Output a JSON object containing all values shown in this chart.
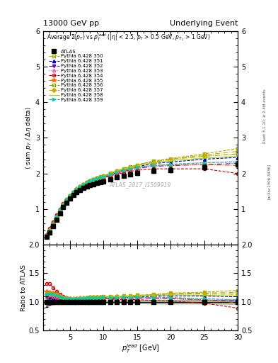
{
  "title_left": "13000 GeV pp",
  "title_right": "Underlying Event",
  "main_ylabel": "⟨ sum p_T / Δη delta⟩",
  "ratio_ylabel": "Ratio to ATLAS",
  "xlabel": "p_T^{lead} [GeV]",
  "watermark": "ATLAS_2017_I1509919",
  "right_label": "Rivet 3.1.10, ≥ 2.4M events",
  "arxiv_label": "[arXiv:1306.3436]",
  "main_title": "Average Σ(p_T) vs p_T^{lead} (|η| < 2.5, p_T > 0.5 GeV, p_{T1} > 1 GeV)",
  "ylim_main": [
    0.0,
    6.0
  ],
  "ylim_ratio": [
    0.5,
    2.0
  ],
  "xlim": [
    1,
    30
  ],
  "yticks_main": [
    1,
    2,
    3,
    4,
    5,
    6
  ],
  "yticks_ratio": [
    0.5,
    1.0,
    1.5,
    2.0
  ],
  "series": [
    {
      "label": "ATLAS",
      "color": "#000000",
      "marker": "s",
      "markersize": 4,
      "linestyle": "none",
      "is_data": true,
      "x": [
        1.5,
        2.0,
        2.5,
        3.0,
        3.5,
        4.0,
        4.5,
        5.0,
        5.5,
        6.0,
        6.5,
        7.0,
        7.5,
        8.0,
        8.5,
        9.0,
        9.5,
        10.0,
        11.0,
        12.0,
        13.0,
        14.0,
        15.0,
        17.5,
        20.0,
        25.0,
        30.0
      ],
      "y": [
        0.22,
        0.35,
        0.52,
        0.7,
        0.88,
        1.05,
        1.18,
        1.3,
        1.4,
        1.48,
        1.54,
        1.59,
        1.63,
        1.67,
        1.7,
        1.73,
        1.76,
        1.78,
        1.84,
        1.9,
        1.94,
        1.98,
        2.01,
        2.08,
        2.1,
        2.18,
        2.25
      ],
      "yerr": [
        0.02,
        0.02,
        0.02,
        0.02,
        0.02,
        0.02,
        0.02,
        0.02,
        0.02,
        0.02,
        0.02,
        0.02,
        0.02,
        0.02,
        0.02,
        0.02,
        0.02,
        0.02,
        0.02,
        0.02,
        0.02,
        0.05,
        0.05,
        0.07,
        0.07,
        0.07,
        0.1
      ]
    },
    {
      "label": "Pythia 6.428 350",
      "color": "#aaaa00",
      "marker": "s",
      "markersize": 3,
      "linestyle": "--",
      "fillstyle": "none",
      "is_data": false,
      "x": [
        1.5,
        2.0,
        2.5,
        3.0,
        3.5,
        4.0,
        4.5,
        5.0,
        5.5,
        6.0,
        6.5,
        7.0,
        7.5,
        8.0,
        8.5,
        9.0,
        9.5,
        10.0,
        11.0,
        12.0,
        13.0,
        14.0,
        15.0,
        17.5,
        20.0,
        25.0,
        30.0
      ],
      "y": [
        0.25,
        0.4,
        0.59,
        0.78,
        0.96,
        1.12,
        1.25,
        1.36,
        1.46,
        1.55,
        1.62,
        1.68,
        1.73,
        1.78,
        1.82,
        1.86,
        1.89,
        1.92,
        1.99,
        2.06,
        2.12,
        2.18,
        2.24,
        2.35,
        2.42,
        2.55,
        2.7
      ]
    },
    {
      "label": "Pythia 6.428 351",
      "color": "#0000cc",
      "marker": "^",
      "markersize": 3,
      "linestyle": "--",
      "fillstyle": "full",
      "is_data": false,
      "x": [
        1.5,
        2.0,
        2.5,
        3.0,
        3.5,
        4.0,
        4.5,
        5.0,
        5.5,
        6.0,
        6.5,
        7.0,
        7.5,
        8.0,
        8.5,
        9.0,
        9.5,
        10.0,
        11.0,
        12.0,
        13.0,
        14.0,
        15.0,
        17.5,
        20.0,
        25.0,
        30.0
      ],
      "y": [
        0.24,
        0.38,
        0.56,
        0.74,
        0.92,
        1.08,
        1.21,
        1.33,
        1.43,
        1.52,
        1.59,
        1.65,
        1.7,
        1.75,
        1.79,
        1.83,
        1.86,
        1.89,
        1.96,
        2.03,
        2.09,
        2.14,
        2.19,
        2.28,
        2.32,
        2.4,
        2.45
      ]
    },
    {
      "label": "Pythia 6.428 352",
      "color": "#6600cc",
      "marker": "v",
      "markersize": 3,
      "linestyle": "-.",
      "fillstyle": "full",
      "is_data": false,
      "x": [
        1.5,
        2.0,
        2.5,
        3.0,
        3.5,
        4.0,
        4.5,
        5.0,
        5.5,
        6.0,
        6.5,
        7.0,
        7.5,
        8.0,
        8.5,
        9.0,
        9.5,
        10.0,
        11.0,
        12.0,
        13.0,
        14.0,
        15.0,
        17.5,
        20.0,
        25.0,
        30.0
      ],
      "y": [
        0.24,
        0.38,
        0.56,
        0.74,
        0.92,
        1.08,
        1.21,
        1.33,
        1.43,
        1.52,
        1.59,
        1.65,
        1.7,
        1.75,
        1.79,
        1.83,
        1.86,
        1.89,
        1.95,
        2.01,
        2.06,
        2.1,
        2.14,
        2.2,
        2.22,
        2.25,
        2.28
      ]
    },
    {
      "label": "Pythia 6.428 353",
      "color": "#ff44aa",
      "marker": "^",
      "markersize": 3,
      "linestyle": ":",
      "fillstyle": "none",
      "is_data": false,
      "x": [
        1.5,
        2.0,
        2.5,
        3.0,
        3.5,
        4.0,
        4.5,
        5.0,
        5.5,
        6.0,
        6.5,
        7.0,
        7.5,
        8.0,
        8.5,
        9.0,
        9.5,
        10.0,
        11.0,
        12.0,
        13.0,
        14.0,
        15.0,
        17.5,
        20.0,
        25.0,
        30.0
      ],
      "y": [
        0.24,
        0.39,
        0.57,
        0.75,
        0.93,
        1.09,
        1.22,
        1.34,
        1.44,
        1.53,
        1.6,
        1.66,
        1.71,
        1.76,
        1.8,
        1.83,
        1.87,
        1.9,
        1.96,
        2.02,
        2.07,
        2.11,
        2.15,
        2.21,
        2.24,
        2.3,
        2.34
      ]
    },
    {
      "label": "Pythia 6.428 354",
      "color": "#cc0000",
      "marker": "o",
      "markersize": 3,
      "linestyle": "--",
      "fillstyle": "none",
      "is_data": false,
      "x": [
        1.5,
        2.0,
        2.5,
        3.0,
        3.5,
        4.0,
        4.5,
        5.0,
        5.5,
        6.0,
        6.5,
        7.0,
        7.5,
        8.0,
        8.5,
        9.0,
        9.5,
        10.0,
        11.0,
        12.0,
        13.0,
        14.0,
        15.0,
        17.5,
        20.0,
        25.0,
        30.0
      ],
      "y": [
        0.29,
        0.46,
        0.65,
        0.83,
        1.0,
        1.15,
        1.27,
        1.38,
        1.47,
        1.55,
        1.62,
        1.67,
        1.72,
        1.76,
        1.79,
        1.82,
        1.85,
        1.87,
        1.93,
        1.98,
        2.02,
        2.06,
        2.09,
        2.13,
        2.13,
        2.13,
        2.0
      ]
    },
    {
      "label": "Pythia 6.428 355",
      "color": "#ff6600",
      "marker": "*",
      "markersize": 4,
      "linestyle": "-.",
      "fillstyle": "full",
      "is_data": false,
      "x": [
        1.5,
        2.0,
        2.5,
        3.0,
        3.5,
        4.0,
        4.5,
        5.0,
        5.5,
        6.0,
        6.5,
        7.0,
        7.5,
        8.0,
        8.5,
        9.0,
        9.5,
        10.0,
        11.0,
        12.0,
        13.0,
        14.0,
        15.0,
        17.5,
        20.0,
        25.0,
        30.0
      ],
      "y": [
        0.26,
        0.41,
        0.6,
        0.79,
        0.97,
        1.13,
        1.26,
        1.38,
        1.48,
        1.57,
        1.64,
        1.7,
        1.75,
        1.8,
        1.84,
        1.87,
        1.9,
        1.93,
        1.99,
        2.05,
        2.1,
        2.14,
        2.18,
        2.23,
        2.24,
        2.25,
        2.22
      ]
    },
    {
      "label": "Pythia 6.428 356",
      "color": "#88aa00",
      "marker": "s",
      "markersize": 3,
      "linestyle": "-.",
      "fillstyle": "none",
      "is_data": false,
      "x": [
        1.5,
        2.0,
        2.5,
        3.0,
        3.5,
        4.0,
        4.5,
        5.0,
        5.5,
        6.0,
        6.5,
        7.0,
        7.5,
        8.0,
        8.5,
        9.0,
        9.5,
        10.0,
        11.0,
        12.0,
        13.0,
        14.0,
        15.0,
        17.5,
        20.0,
        25.0,
        30.0
      ],
      "y": [
        0.25,
        0.4,
        0.59,
        0.78,
        0.96,
        1.12,
        1.25,
        1.37,
        1.47,
        1.56,
        1.63,
        1.69,
        1.75,
        1.8,
        1.84,
        1.88,
        1.91,
        1.94,
        2.01,
        2.08,
        2.14,
        2.19,
        2.24,
        2.33,
        2.4,
        2.48,
        2.55
      ]
    },
    {
      "label": "Pythia 6.428 357",
      "color": "#ccaa00",
      "marker": "D",
      "markersize": 3,
      "linestyle": "-.",
      "fillstyle": "full",
      "is_data": false,
      "x": [
        1.5,
        2.0,
        2.5,
        3.0,
        3.5,
        4.0,
        4.5,
        5.0,
        5.5,
        6.0,
        6.5,
        7.0,
        7.5,
        8.0,
        8.5,
        9.0,
        9.5,
        10.0,
        11.0,
        12.0,
        13.0,
        14.0,
        15.0,
        17.5,
        20.0,
        25.0,
        30.0
      ],
      "y": [
        0.25,
        0.4,
        0.59,
        0.78,
        0.96,
        1.12,
        1.25,
        1.37,
        1.47,
        1.56,
        1.63,
        1.69,
        1.74,
        1.79,
        1.83,
        1.87,
        1.9,
        1.93,
        2.0,
        2.07,
        2.12,
        2.17,
        2.22,
        2.32,
        2.4,
        2.52,
        2.62
      ]
    },
    {
      "label": "Pythia 6.428 358",
      "color": "#aacc00",
      "marker": "None",
      "markersize": 3,
      "linestyle": "-",
      "fillstyle": "full",
      "is_data": false,
      "x": [
        1.5,
        2.0,
        2.5,
        3.0,
        3.5,
        4.0,
        4.5,
        5.0,
        5.5,
        6.0,
        6.5,
        7.0,
        7.5,
        8.0,
        8.5,
        9.0,
        9.5,
        10.0,
        11.0,
        12.0,
        13.0,
        14.0,
        15.0,
        17.5,
        20.0,
        25.0,
        30.0
      ],
      "y": [
        0.25,
        0.4,
        0.59,
        0.78,
        0.96,
        1.12,
        1.26,
        1.38,
        1.48,
        1.57,
        1.64,
        1.7,
        1.75,
        1.8,
        1.84,
        1.88,
        1.91,
        1.94,
        2.01,
        2.08,
        2.13,
        2.18,
        2.23,
        2.31,
        2.36,
        2.43,
        2.48
      ]
    },
    {
      "label": "Pythia 6.428 359",
      "color": "#00ccaa",
      "marker": ">",
      "markersize": 3,
      "linestyle": "--",
      "fillstyle": "full",
      "is_data": false,
      "x": [
        1.5,
        2.0,
        2.5,
        3.0,
        3.5,
        4.0,
        4.5,
        5.0,
        5.5,
        6.0,
        6.5,
        7.0,
        7.5,
        8.0,
        8.5,
        9.0,
        9.5,
        10.0,
        11.0,
        12.0,
        13.0,
        14.0,
        15.0,
        17.5,
        20.0,
        25.0,
        30.0
      ],
      "y": [
        0.25,
        0.4,
        0.59,
        0.78,
        0.96,
        1.12,
        1.25,
        1.37,
        1.47,
        1.56,
        1.63,
        1.69,
        1.74,
        1.79,
        1.83,
        1.86,
        1.89,
        1.92,
        1.98,
        2.04,
        2.09,
        2.13,
        2.17,
        2.23,
        2.26,
        2.3,
        2.32
      ]
    }
  ],
  "band_color": "#88cc44",
  "band_alpha": 0.35,
  "band_ratio_low": 0.97,
  "band_ratio_high": 1.03
}
